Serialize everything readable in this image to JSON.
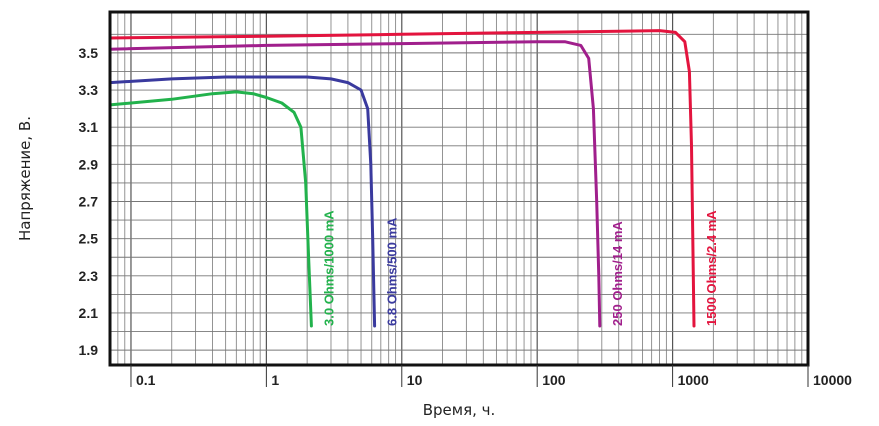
{
  "chart_data": {
    "type": "line",
    "xlabel": "Время, ч.",
    "ylabel": "Напряжение, В.",
    "xscale": "log",
    "xlim": [
      0.07,
      10000
    ],
    "ylim": [
      1.82,
      3.72
    ],
    "grid": true,
    "x_ticks": [
      "0.1",
      "1",
      "10",
      "100",
      "1000",
      "10000"
    ],
    "x_tick_values": [
      0.1,
      1,
      10,
      100,
      1000,
      10000
    ],
    "y_ticks": [
      "3.5",
      "3.3",
      "3.1",
      "2.9",
      "2.7",
      "2.5",
      "2.3",
      "2.1",
      "1.9"
    ],
    "y_tick_values": [
      3.5,
      3.3,
      3.1,
      2.9,
      2.7,
      2.5,
      2.3,
      2.1,
      1.9
    ],
    "series": [
      {
        "name": "3.0 Ohms/1000 mA",
        "color": "#22b24c",
        "points": [
          [
            0.07,
            3.22
          ],
          [
            0.2,
            3.25
          ],
          [
            0.4,
            3.28
          ],
          [
            0.6,
            3.29
          ],
          [
            0.8,
            3.28
          ],
          [
            1.0,
            3.26
          ],
          [
            1.3,
            3.23
          ],
          [
            1.6,
            3.18
          ],
          [
            1.8,
            3.1
          ],
          [
            1.95,
            2.8
          ],
          [
            2.05,
            2.4
          ],
          [
            2.15,
            2.03
          ]
        ]
      },
      {
        "name": "6.8 Ohms/500 mA",
        "color": "#3a3a9e",
        "points": [
          [
            0.07,
            3.34
          ],
          [
            0.2,
            3.36
          ],
          [
            0.5,
            3.37
          ],
          [
            1.0,
            3.37
          ],
          [
            2.0,
            3.37
          ],
          [
            3.0,
            3.36
          ],
          [
            4.0,
            3.34
          ],
          [
            5.0,
            3.3
          ],
          [
            5.6,
            3.2
          ],
          [
            5.9,
            2.9
          ],
          [
            6.1,
            2.5
          ],
          [
            6.3,
            2.03
          ]
        ]
      },
      {
        "name": "250 Ohms/14 mA",
        "color": "#a01f8c",
        "points": [
          [
            0.07,
            3.52
          ],
          [
            1,
            3.54
          ],
          [
            10,
            3.55
          ],
          [
            100,
            3.56
          ],
          [
            160,
            3.56
          ],
          [
            210,
            3.54
          ],
          [
            240,
            3.47
          ],
          [
            260,
            3.2
          ],
          [
            275,
            2.7
          ],
          [
            285,
            2.3
          ],
          [
            290,
            2.03
          ]
        ]
      },
      {
        "name": "1500 Ohms/2.4 mA",
        "color": "#e3143e",
        "points": [
          [
            0.07,
            3.58
          ],
          [
            1,
            3.59
          ],
          [
            10,
            3.6
          ],
          [
            100,
            3.61
          ],
          [
            800,
            3.62
          ],
          [
            1050,
            3.61
          ],
          [
            1230,
            3.56
          ],
          [
            1330,
            3.4
          ],
          [
            1380,
            3.0
          ],
          [
            1410,
            2.5
          ],
          [
            1440,
            2.03
          ]
        ]
      }
    ]
  }
}
